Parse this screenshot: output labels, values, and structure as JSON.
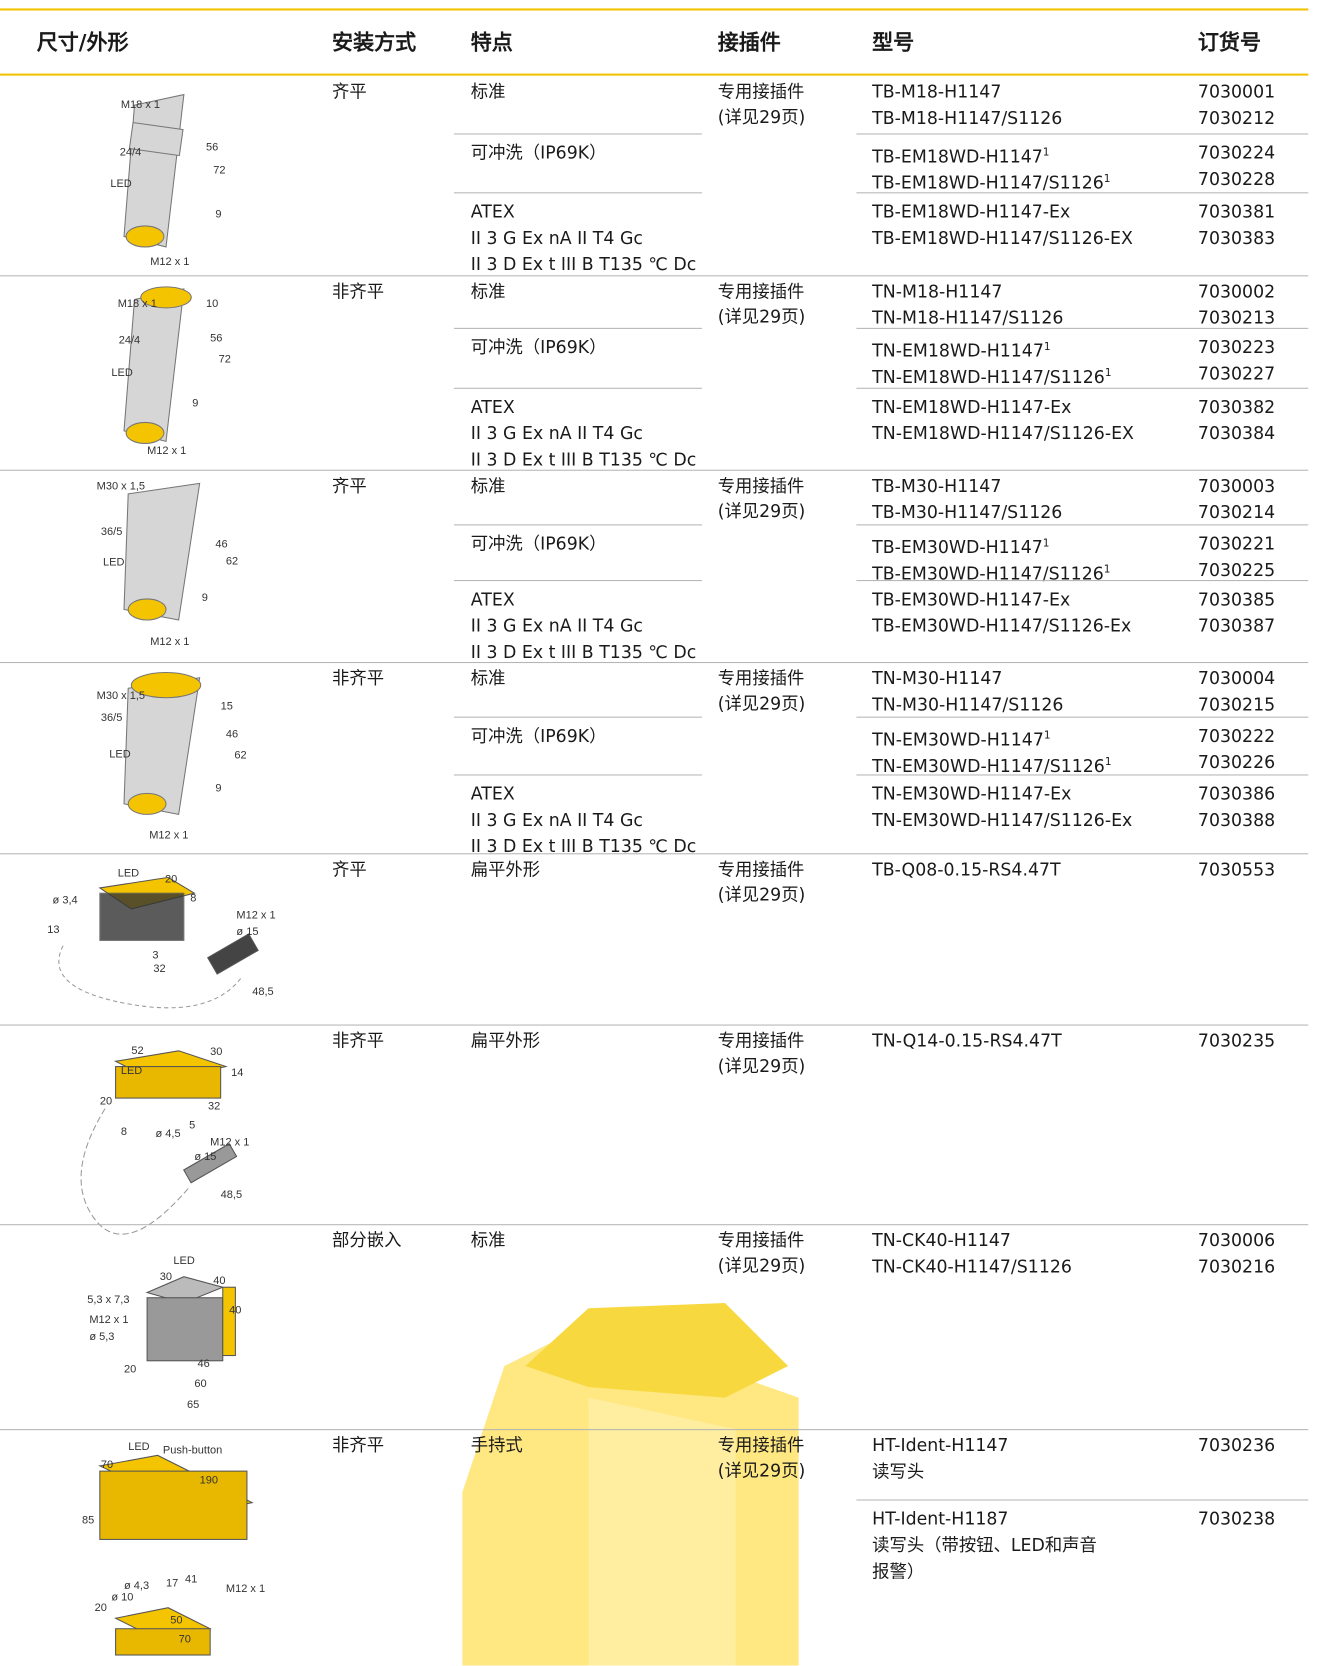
{
  "header": {
    "columns": [
      "尺寸/外形",
      "安装方式",
      "特点",
      "接插件",
      "型号",
      "订货号"
    ]
  },
  "rows": [
    {
      "drawing_labels": [
        "M18 x 1",
        "24/4",
        "56",
        "72",
        "LED",
        "9",
        "M12 x 1"
      ],
      "mounting": "齐平",
      "connector": [
        "专用接插件",
        "(详见29页)"
      ],
      "groups": [
        {
          "feature": [
            "标准"
          ],
          "items": [
            {
              "model": "TB-M18-H1147",
              "order": "7030001"
            },
            {
              "model": "TB-M18-H1147/S1126",
              "order": "7030212"
            }
          ]
        },
        {
          "feature": [
            "可冲洗（IP69K）"
          ],
          "items": [
            {
              "model": "TB-EM18WD-H1147",
              "note": "1",
              "order": "7030224"
            },
            {
              "model": "TB-EM18WD-H1147/S1126",
              "note": "1",
              "order": "7030228"
            }
          ]
        },
        {
          "feature": [
            "ATEX",
            "II 3 G Ex nA II T4 Gc",
            "II 3 D Ex t III B T135 ℃ Dc"
          ],
          "items": [
            {
              "model": "TB-EM18WD-H1147-Ex",
              "order": "7030381"
            },
            {
              "model": "TB-EM18WD-H1147/S1126-EX",
              "order": "7030383"
            }
          ]
        }
      ]
    },
    {
      "drawing_labels": [
        "M18 x 1",
        "10",
        "24/4",
        "56",
        "72",
        "LED",
        "9",
        "M12 x 1"
      ],
      "mounting": "非齐平",
      "connector": [
        "专用接插件",
        "(详见29页)"
      ],
      "groups": [
        {
          "feature": [
            "标准"
          ],
          "items": [
            {
              "model": "TN-M18-H1147",
              "order": "7030002"
            },
            {
              "model": "TN-M18-H1147/S1126",
              "order": "7030213"
            }
          ]
        },
        {
          "feature": [
            "可冲洗（IP69K）"
          ],
          "items": [
            {
              "model": "TN-EM18WD-H1147",
              "note": "1",
              "order": "7030223"
            },
            {
              "model": "TN-EM18WD-H1147/S1126",
              "note": "1",
              "order": "7030227"
            }
          ]
        },
        {
          "feature": [
            "ATEX",
            "II 3 G Ex nA II T4 Gc",
            "II 3 D Ex t III B T135 ℃ Dc"
          ],
          "items": [
            {
              "model": "TN-EM18WD-H1147-Ex",
              "order": "7030382"
            },
            {
              "model": "TN-EM18WD-H1147/S1126-EX",
              "order": "7030384"
            }
          ]
        }
      ]
    },
    {
      "drawing_labels": [
        "M30 x 1,5",
        "36/5",
        "46",
        "62",
        "LED",
        "9",
        "M12 x 1"
      ],
      "mounting": "齐平",
      "connector": [
        "专用接插件",
        "(详见29页)"
      ],
      "groups": [
        {
          "feature": [
            "标准"
          ],
          "items": [
            {
              "model": "TB-M30-H1147",
              "order": "7030003"
            },
            {
              "model": "TB-M30-H1147/S1126",
              "order": "7030214"
            }
          ]
        },
        {
          "feature": [
            "可冲洗（IP69K）"
          ],
          "items": [
            {
              "model": "TB-EM30WD-H1147",
              "note": "1",
              "order": "7030221"
            },
            {
              "model": "TB-EM30WD-H1147/S1126",
              "note": "1",
              "order": "7030225"
            }
          ]
        },
        {
          "feature": [
            "ATEX",
            "II 3 G Ex nA II T4 Gc",
            "II 3 D Ex t III B T135 ℃ Dc"
          ],
          "items": [
            {
              "model": "TB-EM30WD-H1147-Ex",
              "order": "7030385"
            },
            {
              "model": "TB-EM30WD-H1147/S1126-Ex",
              "order": "7030387"
            }
          ]
        }
      ]
    },
    {
      "drawing_labels": [
        "M30 x 1,5",
        "15",
        "36/5",
        "46",
        "62",
        "LED",
        "9",
        "M12 x 1"
      ],
      "mounting": "非齐平",
      "connector": [
        "专用接插件",
        "(详见29页)"
      ],
      "groups": [
        {
          "feature": [
            "标准"
          ],
          "items": [
            {
              "model": "TN-M30-H1147",
              "order": "7030004"
            },
            {
              "model": "TN-M30-H1147/S1126",
              "order": "7030215"
            }
          ]
        },
        {
          "feature": [
            "可冲洗（IP69K）"
          ],
          "items": [
            {
              "model": "TN-EM30WD-H1147",
              "note": "1",
              "order": "7030222"
            },
            {
              "model": "TN-EM30WD-H1147/S1126",
              "note": "1",
              "order": "7030226"
            }
          ]
        },
        {
          "feature": [
            "ATEX",
            "II 3 G Ex nA II T4 Gc",
            "II 3 D Ex t III B T135 ℃ Dc"
          ],
          "items": [
            {
              "model": "TN-EM30WD-H1147-Ex",
              "order": "7030386"
            },
            {
              "model": "TN-EM30WD-H1147/S1126-Ex",
              "order": "7030388"
            }
          ]
        }
      ]
    },
    {
      "drawing_labels": [
        "LED",
        "20",
        "ø 3,4",
        "8",
        "M12 x 1",
        "ø 15",
        "13",
        "3",
        "32",
        "48,5"
      ],
      "mounting": "齐平",
      "connector": [
        "专用接插件",
        "(详见29页)"
      ],
      "groups": [
        {
          "feature": [
            "扁平外形"
          ],
          "items": [
            {
              "model": "TB-Q08-0.15-RS4.47T",
              "order": "7030553"
            }
          ]
        }
      ]
    },
    {
      "drawing_labels": [
        "52",
        "30",
        "LED",
        "14",
        "20",
        "32",
        "8",
        "ø 4,5",
        "5",
        "M12 x 1",
        "ø 15",
        "48,5"
      ],
      "mounting": "非齐平",
      "connector": [
        "专用接插件",
        "(详见29页)"
      ],
      "groups": [
        {
          "feature": [
            "扁平外形"
          ],
          "items": [
            {
              "model": "TN-Q14-0.15-RS4.47T",
              "order": "7030235"
            }
          ]
        }
      ]
    },
    {
      "drawing_labels": [
        "LED",
        "30",
        "40",
        "5,3 x 7,3",
        "40",
        "M12 x 1",
        "ø 5,3",
        "20",
        "46",
        "60",
        "65"
      ],
      "mounting": "部分嵌入",
      "connector": [
        "专用接插件",
        "(详见29页)"
      ],
      "groups": [
        {
          "feature": [
            "标准"
          ],
          "items": [
            {
              "model": "TN-CK40-H1147",
              "order": "7030006"
            },
            {
              "model": "TN-CK40-H1147/S1126",
              "order": "7030216"
            }
          ]
        }
      ]
    },
    {
      "drawing_labels": [
        "LED",
        "Push-button",
        "70",
        "190",
        "85",
        "ø 4,3",
        "17",
        "41",
        "ø 10",
        "M12 x 1",
        "20",
        "50",
        "70"
      ],
      "mounting": "非齐平",
      "connector": [
        "专用接插件",
        "(详见29页)"
      ],
      "groups": [
        {
          "feature": [
            "手持式"
          ],
          "items": [
            {
              "model": "HT-Ident-H1147",
              "desc": [
                "读写头"
              ],
              "order": "7030236"
            }
          ]
        },
        {
          "items": [
            {
              "model": "HT-Ident-H1187",
              "desc": [
                "读写头（带按钮、LED和声音",
                "报警）"
              ],
              "order": "7030238"
            }
          ]
        }
      ]
    }
  ]
}
